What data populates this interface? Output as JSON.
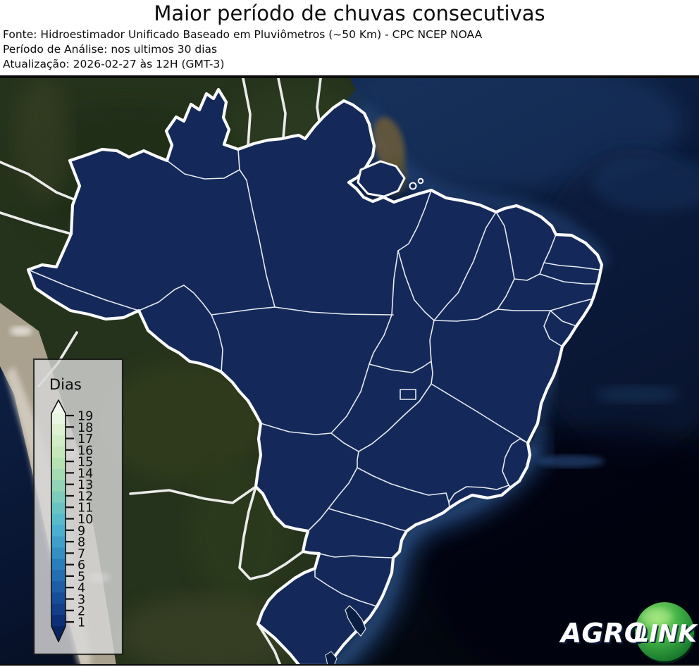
{
  "header": {
    "title": "Maior período de chuvas consecutivas",
    "source": "Fonte: Hidroestimador Unificado Baseado em Pluviômetros (~50 Km) - CPC NCEP NOAA",
    "period": "Período de Análise: nos ultimos 30 dias",
    "updated": "Atualização: 2026-02-27 às 12H (GMT-3)"
  },
  "legend": {
    "title": "Dias",
    "ticks": [
      "19",
      "18",
      "17",
      "16",
      "15",
      "14",
      "13",
      "12",
      "11",
      "10",
      "9",
      "8",
      "7",
      "6",
      "5",
      "4",
      "3",
      "2",
      "1"
    ],
    "colors": [
      "#e9f6e0",
      "#def2d3",
      "#d2edc6",
      "#c5e8ba",
      "#b6e2b1",
      "#a5dbb2",
      "#92d4b6",
      "#7eccbc",
      "#6ac3c3",
      "#58bacb",
      "#4caed0",
      "#409ecb",
      "#358ec4",
      "#2b7ebc",
      "#246eb2",
      "#1d5ea7",
      "#174e99",
      "#123e8a",
      "#0d2f77"
    ],
    "arrow_top_color": "#f0f9ec",
    "arrow_bottom_color": "#0a2462"
  },
  "map": {
    "state_fill_color": "#14295a",
    "state_border_color": "#f2f5f8",
    "country_border_color": "#f5f5f5"
  },
  "logo": {
    "agro": "AGRO",
    "link": "LINK",
    "ball_color": "#2d9c3c"
  },
  "chart_data": {
    "type": "choropleth-map",
    "title": "Maior período de chuvas consecutivas",
    "unit": "dias",
    "scale_min": 1,
    "scale_max": 19,
    "legend_title": "Dias",
    "observed_reading": "Todos os estados do Brasil aparecem na cor mais escura da escala (≈ 1 dia)"
  }
}
